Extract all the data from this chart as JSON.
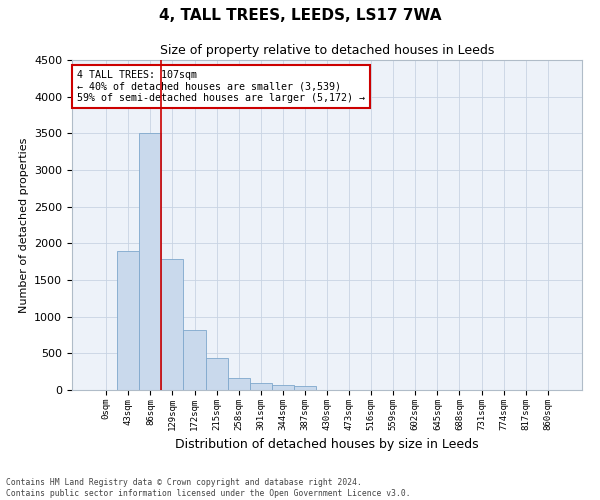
{
  "title": "4, TALL TREES, LEEDS, LS17 7WA",
  "subtitle": "Size of property relative to detached houses in Leeds",
  "xlabel": "Distribution of detached houses by size in Leeds",
  "ylabel": "Number of detached properties",
  "bar_color": "#c9d9ec",
  "bar_edge_color": "#7fa8cc",
  "grid_color": "#c8d4e3",
  "bg_color": "#edf2f9",
  "annotation_box_color": "#cc0000",
  "vline_color": "#cc0000",
  "vline_x": 2.5,
  "annotation_line1": "4 TALL TREES: 107sqm",
  "annotation_line2": "← 40% of detached houses are smaller (3,539)",
  "annotation_line3": "59% of semi-detached houses are larger (5,172) →",
  "footer_line1": "Contains HM Land Registry data © Crown copyright and database right 2024.",
  "footer_line2": "Contains public sector information licensed under the Open Government Licence v3.0.",
  "tick_labels": [
    "0sqm",
    "43sqm",
    "86sqm",
    "129sqm",
    "172sqm",
    "215sqm",
    "258sqm",
    "301sqm",
    "344sqm",
    "387sqm",
    "430sqm",
    "473sqm",
    "516sqm",
    "559sqm",
    "602sqm",
    "645sqm",
    "688sqm",
    "731sqm",
    "774sqm",
    "817sqm",
    "860sqm"
  ],
  "bar_heights": [
    5,
    1900,
    3500,
    1780,
    820,
    440,
    160,
    100,
    75,
    60,
    0,
    0,
    0,
    0,
    0,
    0,
    0,
    0,
    0,
    0,
    0
  ],
  "ylim": [
    0,
    4500
  ],
  "yticks": [
    0,
    500,
    1000,
    1500,
    2000,
    2500,
    3000,
    3500,
    4000,
    4500
  ],
  "figsize": [
    6.0,
    5.0
  ],
  "dpi": 100
}
